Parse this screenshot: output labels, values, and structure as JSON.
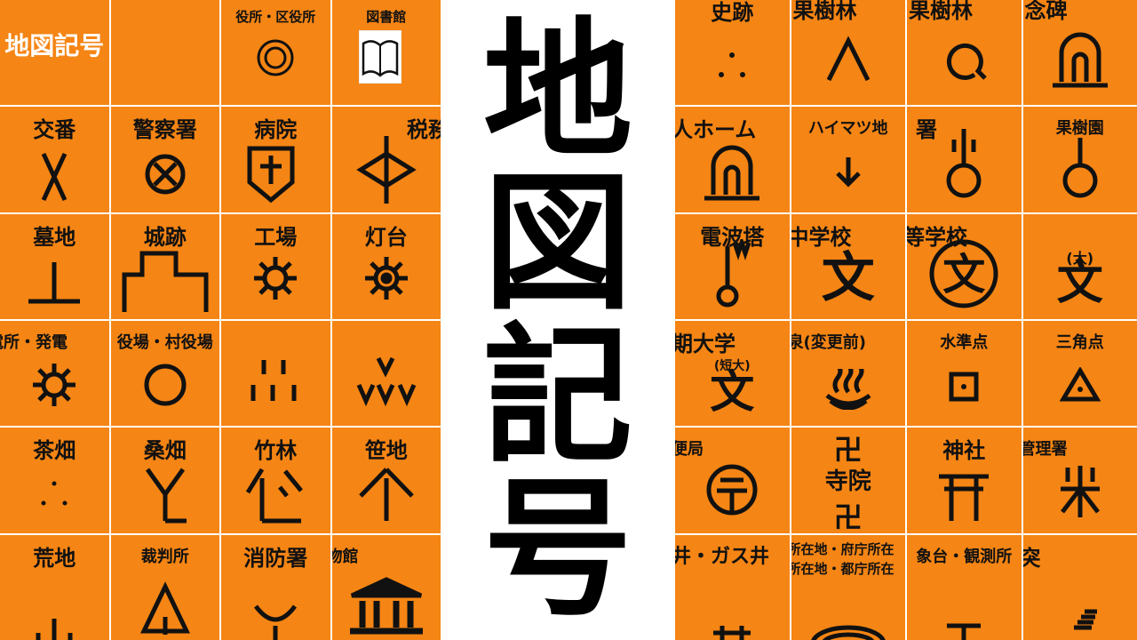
{
  "title": {
    "chars": [
      "地",
      "図",
      "記",
      "号"
    ]
  },
  "left_grid": {
    "title_cell": "地図記号",
    "labels": {
      "r0c2": "役所・区役所",
      "r0c3": "図書館",
      "r1c0": "交番",
      "r1c1": "警察署",
      "r1c2": "病院",
      "r1c3": "税務",
      "r2c0": "墓地",
      "r2c1": "城跡",
      "r2c2": "工場",
      "r2c3": "灯台",
      "r3c0": "電所・発電",
      "r3c1": "役場・村役場",
      "r4c0": "茶畑",
      "r4c1": "桑畑",
      "r4c2": "竹林",
      "r4c3": "笹地",
      "r5c0": "荒地",
      "r5c1": "裁判所",
      "r5c2": "消防署",
      "r5c3": "物館"
    }
  },
  "right_grid": {
    "labels": {
      "r0c0": "史跡",
      "r0c1": "果樹林",
      "r0c2": "果樹林",
      "r0c3": "念碑",
      "r1c0": "人ホーム",
      "r1c1": "ハイマツ地",
      "r1c2": "署",
      "r1c3": "果樹園",
      "r2c0": "電波塔",
      "r2c1": "中学校",
      "r2c2": "等学校",
      "r3c0": "期大学",
      "r3c1": "泉(変更前)",
      "r3c2": "水準点",
      "r3c3": "三角点",
      "r4c0": "便局",
      "r4c2": "神社",
      "r4c3": "管理署",
      "r5c0": "井・ガス井",
      "r5c1a": "所在地・府庁所在",
      "r5c1b": "所在地・都庁所在",
      "r5c2": "象台・観測所",
      "r5c3": "突"
    },
    "symbol_texts": {
      "junior_high": "文",
      "high_school": "文",
      "university": "文",
      "university_tag": "(大)",
      "junior_college": "文",
      "junior_college_tag": "(短大)",
      "temple_label": "寺院",
      "manji_top": "卍",
      "manji_bottom": "卍"
    }
  },
  "colors": {
    "cell_bg": "#f58514",
    "grid_line": "#ffffff",
    "ink": "#111111"
  }
}
